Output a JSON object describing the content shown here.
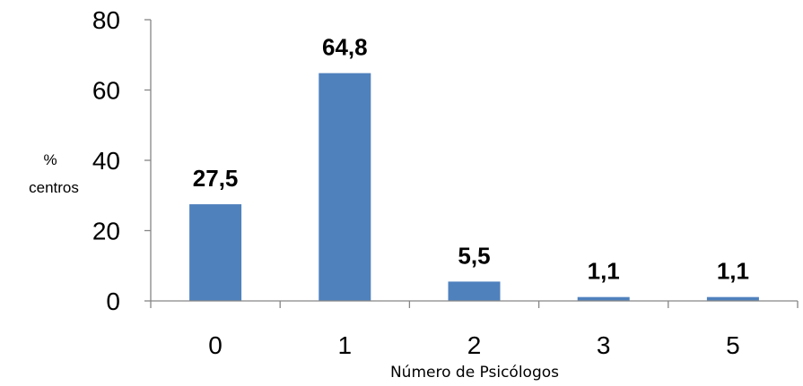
{
  "chart_data": {
    "type": "bar",
    "categories": [
      "0",
      "1",
      "2",
      "3",
      "5"
    ],
    "values": [
      27.5,
      64.8,
      5.5,
      1.1,
      1.1
    ],
    "data_labels": [
      "27,5",
      "64,8",
      "5,5",
      "1,1",
      "1,1"
    ],
    "xlabel": "Número de Psicólogos",
    "ylabel": [
      "%",
      "centros"
    ],
    "ylim": [
      0,
      80
    ],
    "yticks": [
      0,
      20,
      40,
      60,
      80
    ],
    "grid": false,
    "bar_color": "#4f81bd"
  }
}
